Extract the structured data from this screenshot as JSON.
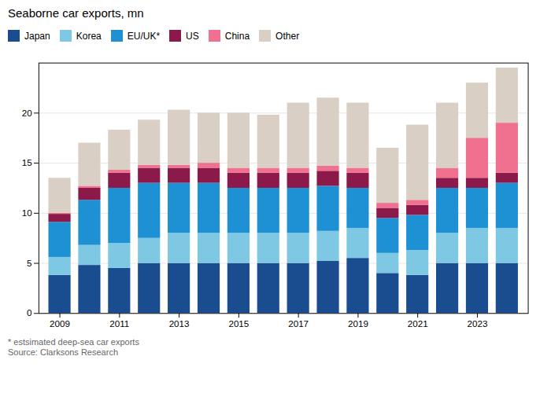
{
  "chart_data": {
    "type": "bar",
    "stacked": true,
    "title": "Seaborne car exports, mn",
    "categories": [
      "2009",
      null,
      "2011",
      null,
      "2013",
      null,
      "2015",
      null,
      "2017",
      null,
      "2019",
      null,
      "2021",
      null,
      "2023",
      null
    ],
    "series": [
      {
        "name": "Japan",
        "color": "#1a4d8f",
        "values": [
          3.8,
          4.8,
          4.5,
          5.0,
          5.0,
          5.0,
          5.0,
          5.0,
          5.0,
          5.2,
          5.5,
          4.0,
          3.8,
          5.0,
          5.0,
          5.0
        ]
      },
      {
        "name": "Korea",
        "color": "#7ec8e3",
        "values": [
          1.8,
          2.0,
          2.5,
          2.5,
          3.0,
          3.0,
          3.0,
          3.0,
          3.0,
          3.0,
          3.0,
          2.0,
          2.5,
          3.0,
          3.5,
          3.5
        ]
      },
      {
        "name": "EU/UK*",
        "color": "#1e90d4",
        "values": [
          3.5,
          4.5,
          5.5,
          5.5,
          5.0,
          5.0,
          4.5,
          4.5,
          4.5,
          4.5,
          4.0,
          3.5,
          3.5,
          4.5,
          4.0,
          4.5
        ]
      },
      {
        "name": "US",
        "color": "#8b1a4a",
        "values": [
          0.8,
          1.2,
          1.5,
          1.5,
          1.5,
          1.5,
          1.5,
          1.5,
          1.5,
          1.5,
          1.5,
          1.0,
          1.0,
          1.0,
          1.0,
          1.0
        ]
      },
      {
        "name": "China",
        "color": "#f07090",
        "values": [
          0.1,
          0.2,
          0.3,
          0.3,
          0.3,
          0.5,
          0.5,
          0.5,
          0.5,
          0.5,
          0.5,
          0.5,
          0.5,
          1.0,
          4.0,
          5.0
        ]
      },
      {
        "name": "Other",
        "color": "#d9cfc4",
        "values": [
          3.5,
          4.3,
          4.0,
          4.5,
          5.5,
          5.0,
          5.5,
          5.3,
          6.5,
          6.8,
          6.5,
          5.5,
          7.5,
          6.5,
          5.5,
          5.5
        ]
      }
    ],
    "ylim": [
      0,
      25
    ],
    "yticks": [
      0,
      5,
      10,
      15,
      20
    ],
    "grid": true,
    "legend": "top-left",
    "annotations": [
      "* estsimated deep-sea car exports",
      "Source: Clarksons Research"
    ]
  }
}
